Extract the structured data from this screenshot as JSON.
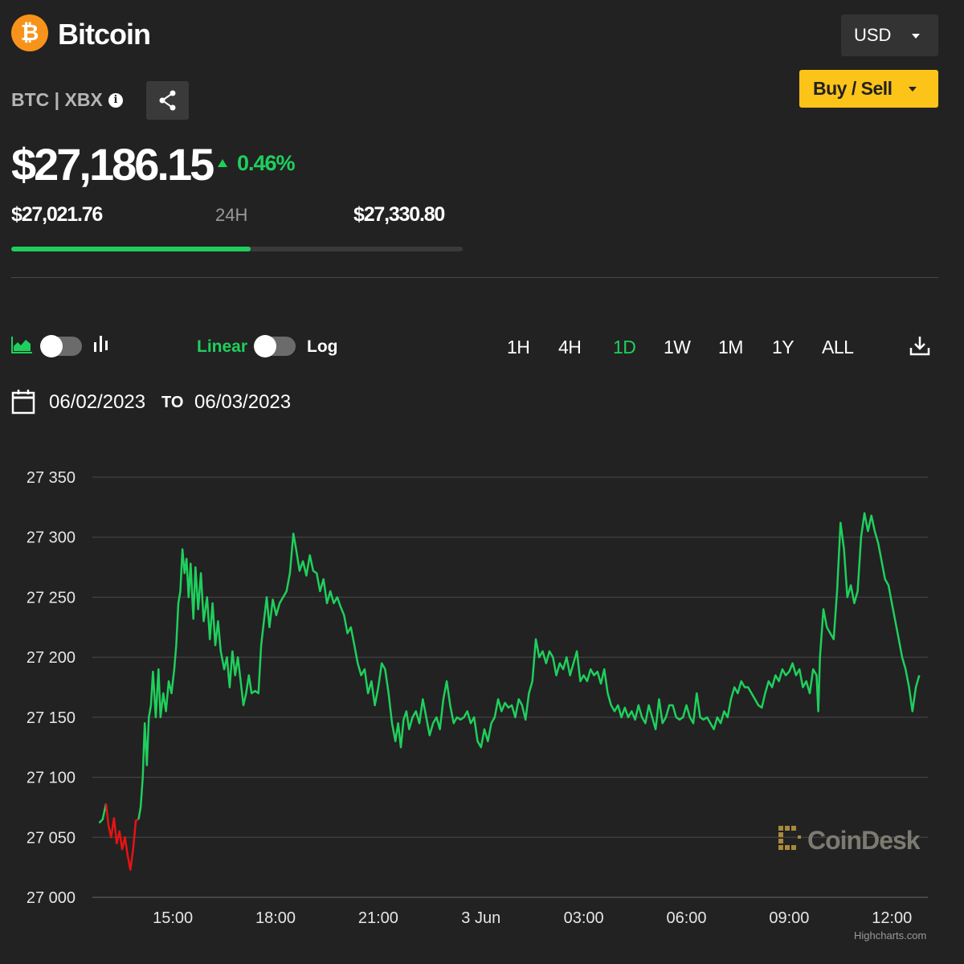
{
  "header": {
    "coin_symbol_glyph": "₿",
    "coin_name": "Bitcoin",
    "ticker": "BTC | XBX",
    "info_glyph": "i",
    "currency": "USD",
    "buy_sell_label": "Buy / Sell"
  },
  "price": {
    "current": "$27,186.15",
    "change_pct": "0.46%",
    "low_24h": "$27,021.76",
    "range_label": "24H",
    "high_24h": "$27,330.80",
    "range_position_fraction": 0.53
  },
  "controls": {
    "linear_label": "Linear",
    "log_label": "Log",
    "ranges": [
      "1H",
      "4H",
      "1D",
      "1W",
      "1M",
      "1Y",
      "ALL"
    ],
    "active_range": "1D",
    "date_from": "06/02/2023",
    "date_to_label": "TO",
    "date_to": "06/03/2023"
  },
  "chart_data": {
    "type": "line",
    "y_ticks": [
      "27 350",
      "27 300",
      "27 250",
      "27 200",
      "27 150",
      "27 100",
      "27 050",
      "27 000"
    ],
    "x_ticks": [
      "15:00",
      "18:00",
      "21:00",
      "3 Jun",
      "03:00",
      "06:00",
      "09:00",
      "12:00"
    ],
    "ylim": [
      27000,
      27350
    ],
    "x_unit": "hours since 2023-06-02 00:00",
    "xlim": [
      12.65,
      37.05
    ],
    "series": [
      {
        "color_up": "#1fcf5c",
        "color_down": "#e81313",
        "points": [
          [
            12.85,
            27062
          ],
          [
            12.95,
            27065
          ],
          [
            13.05,
            27078
          ],
          [
            13.12,
            27060
          ],
          [
            13.2,
            27050
          ],
          [
            13.28,
            27066
          ],
          [
            13.36,
            27045
          ],
          [
            13.44,
            27055
          ],
          [
            13.52,
            27040
          ],
          [
            13.6,
            27050
          ],
          [
            13.68,
            27035
          ],
          [
            13.76,
            27023
          ],
          [
            13.84,
            27040
          ],
          [
            13.92,
            27064
          ],
          [
            14.0,
            27065
          ],
          [
            14.06,
            27075
          ],
          [
            14.12,
            27100
          ],
          [
            14.18,
            27145
          ],
          [
            14.24,
            27110
          ],
          [
            14.3,
            27150
          ],
          [
            14.36,
            27160
          ],
          [
            14.42,
            27188
          ],
          [
            14.5,
            27150
          ],
          [
            14.58,
            27190
          ],
          [
            14.64,
            27150
          ],
          [
            14.72,
            27170
          ],
          [
            14.8,
            27155
          ],
          [
            14.88,
            27180
          ],
          [
            14.96,
            27170
          ],
          [
            15.04,
            27190
          ],
          [
            15.1,
            27210
          ],
          [
            15.16,
            27245
          ],
          [
            15.22,
            27255
          ],
          [
            15.28,
            27290
          ],
          [
            15.34,
            27270
          ],
          [
            15.4,
            27282
          ],
          [
            15.46,
            27250
          ],
          [
            15.52,
            27278
          ],
          [
            15.6,
            27232
          ],
          [
            15.66,
            27275
          ],
          [
            15.74,
            27240
          ],
          [
            15.82,
            27270
          ],
          [
            15.9,
            27230
          ],
          [
            16.0,
            27250
          ],
          [
            16.08,
            27215
          ],
          [
            16.16,
            27245
          ],
          [
            16.24,
            27210
          ],
          [
            16.32,
            27230
          ],
          [
            16.4,
            27205
          ],
          [
            16.5,
            27190
          ],
          [
            16.58,
            27200
          ],
          [
            16.66,
            27175
          ],
          [
            16.74,
            27205
          ],
          [
            16.82,
            27185
          ],
          [
            16.9,
            27200
          ],
          [
            16.98,
            27180
          ],
          [
            17.06,
            27160
          ],
          [
            17.14,
            27170
          ],
          [
            17.22,
            27185
          ],
          [
            17.3,
            27170
          ],
          [
            17.4,
            27172
          ],
          [
            17.5,
            27170
          ],
          [
            17.58,
            27210
          ],
          [
            17.66,
            27230
          ],
          [
            17.74,
            27250
          ],
          [
            17.82,
            27225
          ],
          [
            17.92,
            27248
          ],
          [
            18.02,
            27235
          ],
          [
            18.12,
            27245
          ],
          [
            18.22,
            27250
          ],
          [
            18.32,
            27255
          ],
          [
            18.42,
            27270
          ],
          [
            18.52,
            27303
          ],
          [
            18.6,
            27290
          ],
          [
            18.7,
            27272
          ],
          [
            18.8,
            27280
          ],
          [
            18.9,
            27268
          ],
          [
            19.0,
            27285
          ],
          [
            19.1,
            27272
          ],
          [
            19.2,
            27270
          ],
          [
            19.3,
            27255
          ],
          [
            19.4,
            27265
          ],
          [
            19.5,
            27245
          ],
          [
            19.6,
            27255
          ],
          [
            19.7,
            27245
          ],
          [
            19.8,
            27250
          ],
          [
            19.9,
            27242
          ],
          [
            20.0,
            27235
          ],
          [
            20.1,
            27220
          ],
          [
            20.2,
            27225
          ],
          [
            20.3,
            27210
          ],
          [
            20.4,
            27195
          ],
          [
            20.5,
            27185
          ],
          [
            20.6,
            27190
          ],
          [
            20.7,
            27170
          ],
          [
            20.8,
            27180
          ],
          [
            20.9,
            27160
          ],
          [
            21.0,
            27175
          ],
          [
            21.1,
            27195
          ],
          [
            21.2,
            27190
          ],
          [
            21.3,
            27170
          ],
          [
            21.4,
            27145
          ],
          [
            21.5,
            27130
          ],
          [
            21.58,
            27145
          ],
          [
            21.66,
            27125
          ],
          [
            21.74,
            27148
          ],
          [
            21.82,
            27155
          ],
          [
            21.9,
            27140
          ],
          [
            22.0,
            27150
          ],
          [
            22.1,
            27155
          ],
          [
            22.2,
            27145
          ],
          [
            22.3,
            27165
          ],
          [
            22.4,
            27150
          ],
          [
            22.5,
            27135
          ],
          [
            22.6,
            27145
          ],
          [
            22.7,
            27150
          ],
          [
            22.8,
            27140
          ],
          [
            22.9,
            27165
          ],
          [
            23.0,
            27180
          ],
          [
            23.1,
            27160
          ],
          [
            23.2,
            27145
          ],
          [
            23.3,
            27150
          ],
          [
            23.4,
            27148
          ],
          [
            23.5,
            27150
          ],
          [
            23.6,
            27155
          ],
          [
            23.7,
            27145
          ],
          [
            23.8,
            27150
          ],
          [
            23.9,
            27130
          ],
          [
            24.0,
            27125
          ],
          [
            24.1,
            27140
          ],
          [
            24.2,
            27130
          ],
          [
            24.3,
            27145
          ],
          [
            24.4,
            27150
          ],
          [
            24.5,
            27165
          ],
          [
            24.6,
            27155
          ],
          [
            24.7,
            27162
          ],
          [
            24.8,
            27158
          ],
          [
            24.9,
            27160
          ],
          [
            25.0,
            27150
          ],
          [
            25.1,
            27165
          ],
          [
            25.2,
            27160
          ],
          [
            25.3,
            27148
          ],
          [
            25.4,
            27170
          ],
          [
            25.5,
            27180
          ],
          [
            25.6,
            27215
          ],
          [
            25.7,
            27200
          ],
          [
            25.8,
            27205
          ],
          [
            25.9,
            27195
          ],
          [
            26.0,
            27205
          ],
          [
            26.1,
            27200
          ],
          [
            26.2,
            27185
          ],
          [
            26.3,
            27195
          ],
          [
            26.4,
            27190
          ],
          [
            26.5,
            27200
          ],
          [
            26.6,
            27185
          ],
          [
            26.7,
            27195
          ],
          [
            26.8,
            27205
          ],
          [
            26.9,
            27180
          ],
          [
            27.0,
            27185
          ],
          [
            27.1,
            27180
          ],
          [
            27.2,
            27190
          ],
          [
            27.3,
            27185
          ],
          [
            27.4,
            27188
          ],
          [
            27.5,
            27178
          ],
          [
            27.6,
            27190
          ],
          [
            27.7,
            27170
          ],
          [
            27.8,
            27160
          ],
          [
            27.9,
            27155
          ],
          [
            28.0,
            27160
          ],
          [
            28.1,
            27150
          ],
          [
            28.2,
            27158
          ],
          [
            28.3,
            27150
          ],
          [
            28.4,
            27155
          ],
          [
            28.5,
            27148
          ],
          [
            28.6,
            27160
          ],
          [
            28.7,
            27150
          ],
          [
            28.8,
            27145
          ],
          [
            28.9,
            27160
          ],
          [
            29.0,
            27150
          ],
          [
            29.1,
            27140
          ],
          [
            29.2,
            27165
          ],
          [
            29.3,
            27145
          ],
          [
            29.4,
            27150
          ],
          [
            29.5,
            27160
          ],
          [
            29.6,
            27160
          ],
          [
            29.7,
            27150
          ],
          [
            29.8,
            27148
          ],
          [
            29.9,
            27150
          ],
          [
            30.0,
            27160
          ],
          [
            30.1,
            27150
          ],
          [
            30.2,
            27145
          ],
          [
            30.3,
            27170
          ],
          [
            30.4,
            27150
          ],
          [
            30.5,
            27148
          ],
          [
            30.6,
            27150
          ],
          [
            30.7,
            27145
          ],
          [
            30.8,
            27140
          ],
          [
            30.9,
            27150
          ],
          [
            31.0,
            27145
          ],
          [
            31.1,
            27155
          ],
          [
            31.2,
            27150
          ],
          [
            31.3,
            27165
          ],
          [
            31.4,
            27175
          ],
          [
            31.5,
            27170
          ],
          [
            31.6,
            27180
          ],
          [
            31.7,
            27175
          ],
          [
            31.8,
            27175
          ],
          [
            31.9,
            27170
          ],
          [
            32.0,
            27165
          ],
          [
            32.1,
            27160
          ],
          [
            32.2,
            27158
          ],
          [
            32.3,
            27170
          ],
          [
            32.4,
            27180
          ],
          [
            32.5,
            27175
          ],
          [
            32.6,
            27185
          ],
          [
            32.7,
            27180
          ],
          [
            32.8,
            27190
          ],
          [
            32.9,
            27185
          ],
          [
            33.0,
            27188
          ],
          [
            33.1,
            27195
          ],
          [
            33.2,
            27185
          ],
          [
            33.3,
            27190
          ],
          [
            33.4,
            27175
          ],
          [
            33.5,
            27180
          ],
          [
            33.6,
            27170
          ],
          [
            33.7,
            27190
          ],
          [
            33.8,
            27185
          ],
          [
            33.85,
            27155
          ],
          [
            33.9,
            27200
          ],
          [
            34.0,
            27240
          ],
          [
            34.1,
            27225
          ],
          [
            34.2,
            27220
          ],
          [
            34.3,
            27215
          ],
          [
            34.4,
            27255
          ],
          [
            34.5,
            27312
          ],
          [
            34.6,
            27290
          ],
          [
            34.7,
            27250
          ],
          [
            34.8,
            27260
          ],
          [
            34.9,
            27245
          ],
          [
            35.0,
            27255
          ],
          [
            35.1,
            27300
          ],
          [
            35.2,
            27320
          ],
          [
            35.3,
            27305
          ],
          [
            35.4,
            27318
          ],
          [
            35.5,
            27305
          ],
          [
            35.6,
            27295
          ],
          [
            35.7,
            27280
          ],
          [
            35.8,
            27265
          ],
          [
            35.9,
            27260
          ],
          [
            36.0,
            27245
          ],
          [
            36.1,
            27230
          ],
          [
            36.2,
            27215
          ],
          [
            36.3,
            27200
          ],
          [
            36.4,
            27190
          ],
          [
            36.5,
            27175
          ],
          [
            36.6,
            27155
          ],
          [
            36.7,
            27175
          ],
          [
            36.8,
            27185
          ]
        ]
      }
    ]
  },
  "chart_credits": "Highcharts.com",
  "watermark": "CoinDesk"
}
